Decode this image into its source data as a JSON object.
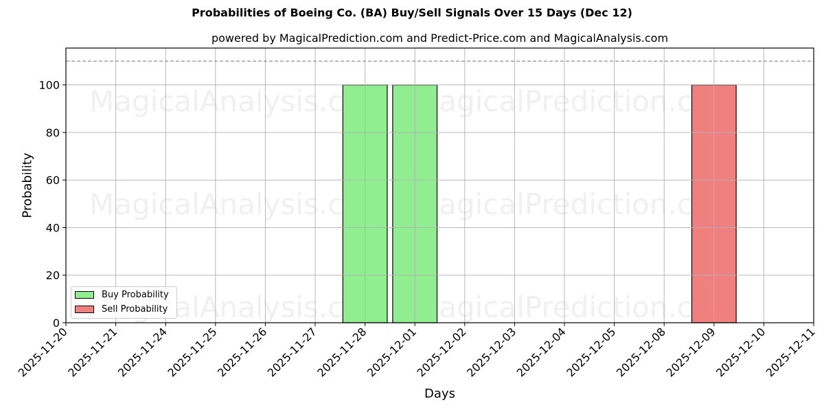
{
  "chart_data": {
    "type": "bar",
    "title": "Probabilities of Boeing Co. (BA) Buy/Sell Signals Over 15 Days (Dec 12)",
    "subtitle": "powered by MagicalPrediction.com and Predict-Price.com and MagicalAnalysis.com",
    "xlabel": "Days",
    "ylabel": "Probability",
    "ylim": [
      0,
      115.5
    ],
    "yticks": [
      0,
      20,
      40,
      60,
      80,
      100
    ],
    "reference_line": {
      "y": 110,
      "style": "dashed",
      "color": "#808080"
    },
    "grid": true,
    "legend_position": "lower left",
    "categories": [
      "2025-11-20",
      "2025-11-21",
      "2025-11-24",
      "2025-11-25",
      "2025-11-26",
      "2025-11-27",
      "2025-11-28",
      "2025-12-01",
      "2025-12-02",
      "2025-12-03",
      "2025-12-04",
      "2025-12-05",
      "2025-12-08",
      "2025-12-09",
      "2025-12-10",
      "2025-12-11"
    ],
    "series": [
      {
        "name": "Buy Probability",
        "color": "#90ee90",
        "values": [
          0,
          0,
          0,
          0,
          0,
          0,
          100,
          100,
          0,
          0,
          0,
          0,
          0,
          0,
          0,
          0
        ]
      },
      {
        "name": "Sell Probability",
        "color": "#f08080",
        "values": [
          0,
          0,
          0,
          0,
          0,
          0,
          0,
          0,
          0,
          0,
          0,
          0,
          0,
          100,
          0,
          0
        ]
      }
    ],
    "watermarks": [
      "MagicalAnalysis.com",
      "MagicalPrediction.com"
    ]
  },
  "legend": {
    "buy_label": "Buy Probability",
    "sell_label": "Sell Probability"
  }
}
